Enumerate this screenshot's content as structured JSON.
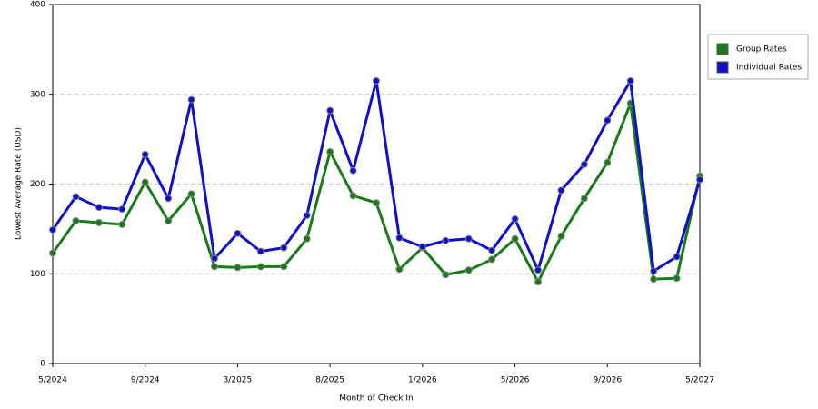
{
  "chart_data": {
    "type": "line",
    "x_label": "Month of Check In",
    "y_label": "Lowest Average Rate (USD)",
    "categories": [
      "5/2024",
      null,
      null,
      null,
      "9/2024",
      null,
      null,
      null,
      "3/2025",
      null,
      null,
      null,
      "8/2025",
      null,
      null,
      null,
      "1/2026",
      null,
      null,
      null,
      "5/2026",
      null,
      null,
      null,
      "9/2026",
      null,
      null,
      null,
      "5/2027"
    ],
    "series": [
      {
        "name": "Group Rates",
        "color": "#1a7a1a",
        "values": [
          123,
          159,
          157,
          155,
          202,
          159,
          189,
          108,
          107,
          108,
          108,
          139,
          236,
          187,
          179,
          105,
          129,
          99,
          104,
          116,
          139,
          91,
          142,
          184,
          224,
          290,
          94,
          95,
          209
        ]
      },
      {
        "name": "Individual Rates",
        "color": "#1010c8",
        "values": [
          149,
          186,
          174,
          172,
          233,
          184,
          294,
          117,
          145,
          125,
          129,
          165,
          282,
          215,
          315,
          140,
          130,
          137,
          139,
          126,
          161,
          104,
          193,
          222,
          271,
          315,
          103,
          119,
          205
        ]
      }
    ],
    "ylim": [
      0,
      400
    ],
    "yticks": [
      0,
      100,
      200,
      300,
      400
    ],
    "grid": true,
    "legend": "right"
  }
}
